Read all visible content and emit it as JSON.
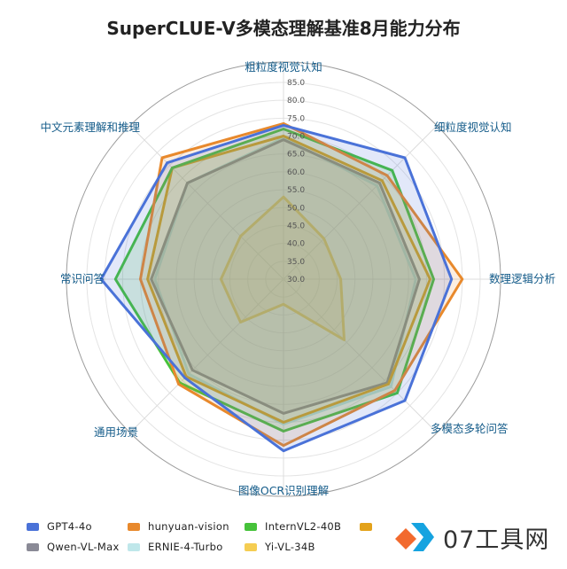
{
  "chart_data": {
    "type": "radar",
    "title": "SuperCLUE-V多模态理解基准8月能力分布",
    "axes": [
      "粗粒度视觉认知",
      "细粒度视觉认知",
      "数理逻辑分析",
      "多模态多轮问答",
      "图像OCR识别理解",
      "通用场景",
      "常识问答",
      "中文元素理解和推理"
    ],
    "rlim": [
      30.0,
      85.0
    ],
    "ticks": [
      "30.0",
      "35.0",
      "40.0",
      "45.0",
      "50.0",
      "55.0",
      "60.0",
      "65.0",
      "70.0",
      "75.0",
      "80.0",
      "85.0"
    ],
    "series": [
      {
        "name": "GPT4-4o",
        "color": "#4a72d8",
        "fill": "rgba(74,114,216,0.16)",
        "values": [
          73.0,
          78.0,
          77.0,
          78.0,
          78.0,
          69.0,
          81.0,
          76.0
        ]
      },
      {
        "name": "hunyuan-vision",
        "color": "#e8892c",
        "fill": "rgba(232,137,44,0.14)",
        "values": [
          73.5,
          71.0,
          80.0,
          74.0,
          76.5,
          71.5,
          70.0,
          78.0
        ]
      },
      {
        "name": "InternVL2-40B",
        "color": "#46c23a",
        "fill": "rgba(70,194,58,0.16)",
        "values": [
          72.0,
          73.0,
          72.0,
          75.0,
          72.5,
          71.0,
          77.0,
          74.0
        ]
      },
      {
        "name": "",
        "color": "#e3a21a",
        "fill": "rgba(227,162,26,0.12)",
        "values": [
          70.0,
          69.0,
          71.0,
          71.5,
          70.0,
          68.5,
          68.0,
          74.0
        ]
      },
      {
        "name": "Qwen-VL-Max",
        "color": "#8a8a96",
        "fill": "rgba(138,138,150,0.16)",
        "values": [
          69.0,
          68.0,
          68.0,
          71.0,
          67.5,
          66.0,
          67.0,
          68.0
        ]
      },
      {
        "name": "ERNIE-4-Turbo",
        "color": "#bfe7ea",
        "fill": "rgba(191,231,234,0.18)",
        "values": [
          69.5,
          67.0,
          67.0,
          72.5,
          70.5,
          67.5,
          66.0,
          68.0
        ]
      },
      {
        "name": "Yi-VL-34B",
        "color": "#f5cd52",
        "fill": "rgba(245,205,82,0.20)",
        "values": [
          53.0,
          46.0,
          46.0,
          54.0,
          37.0,
          47.0,
          47.5,
          47.0
        ]
      }
    ]
  },
  "watermark": {
    "text": "07工具网"
  }
}
